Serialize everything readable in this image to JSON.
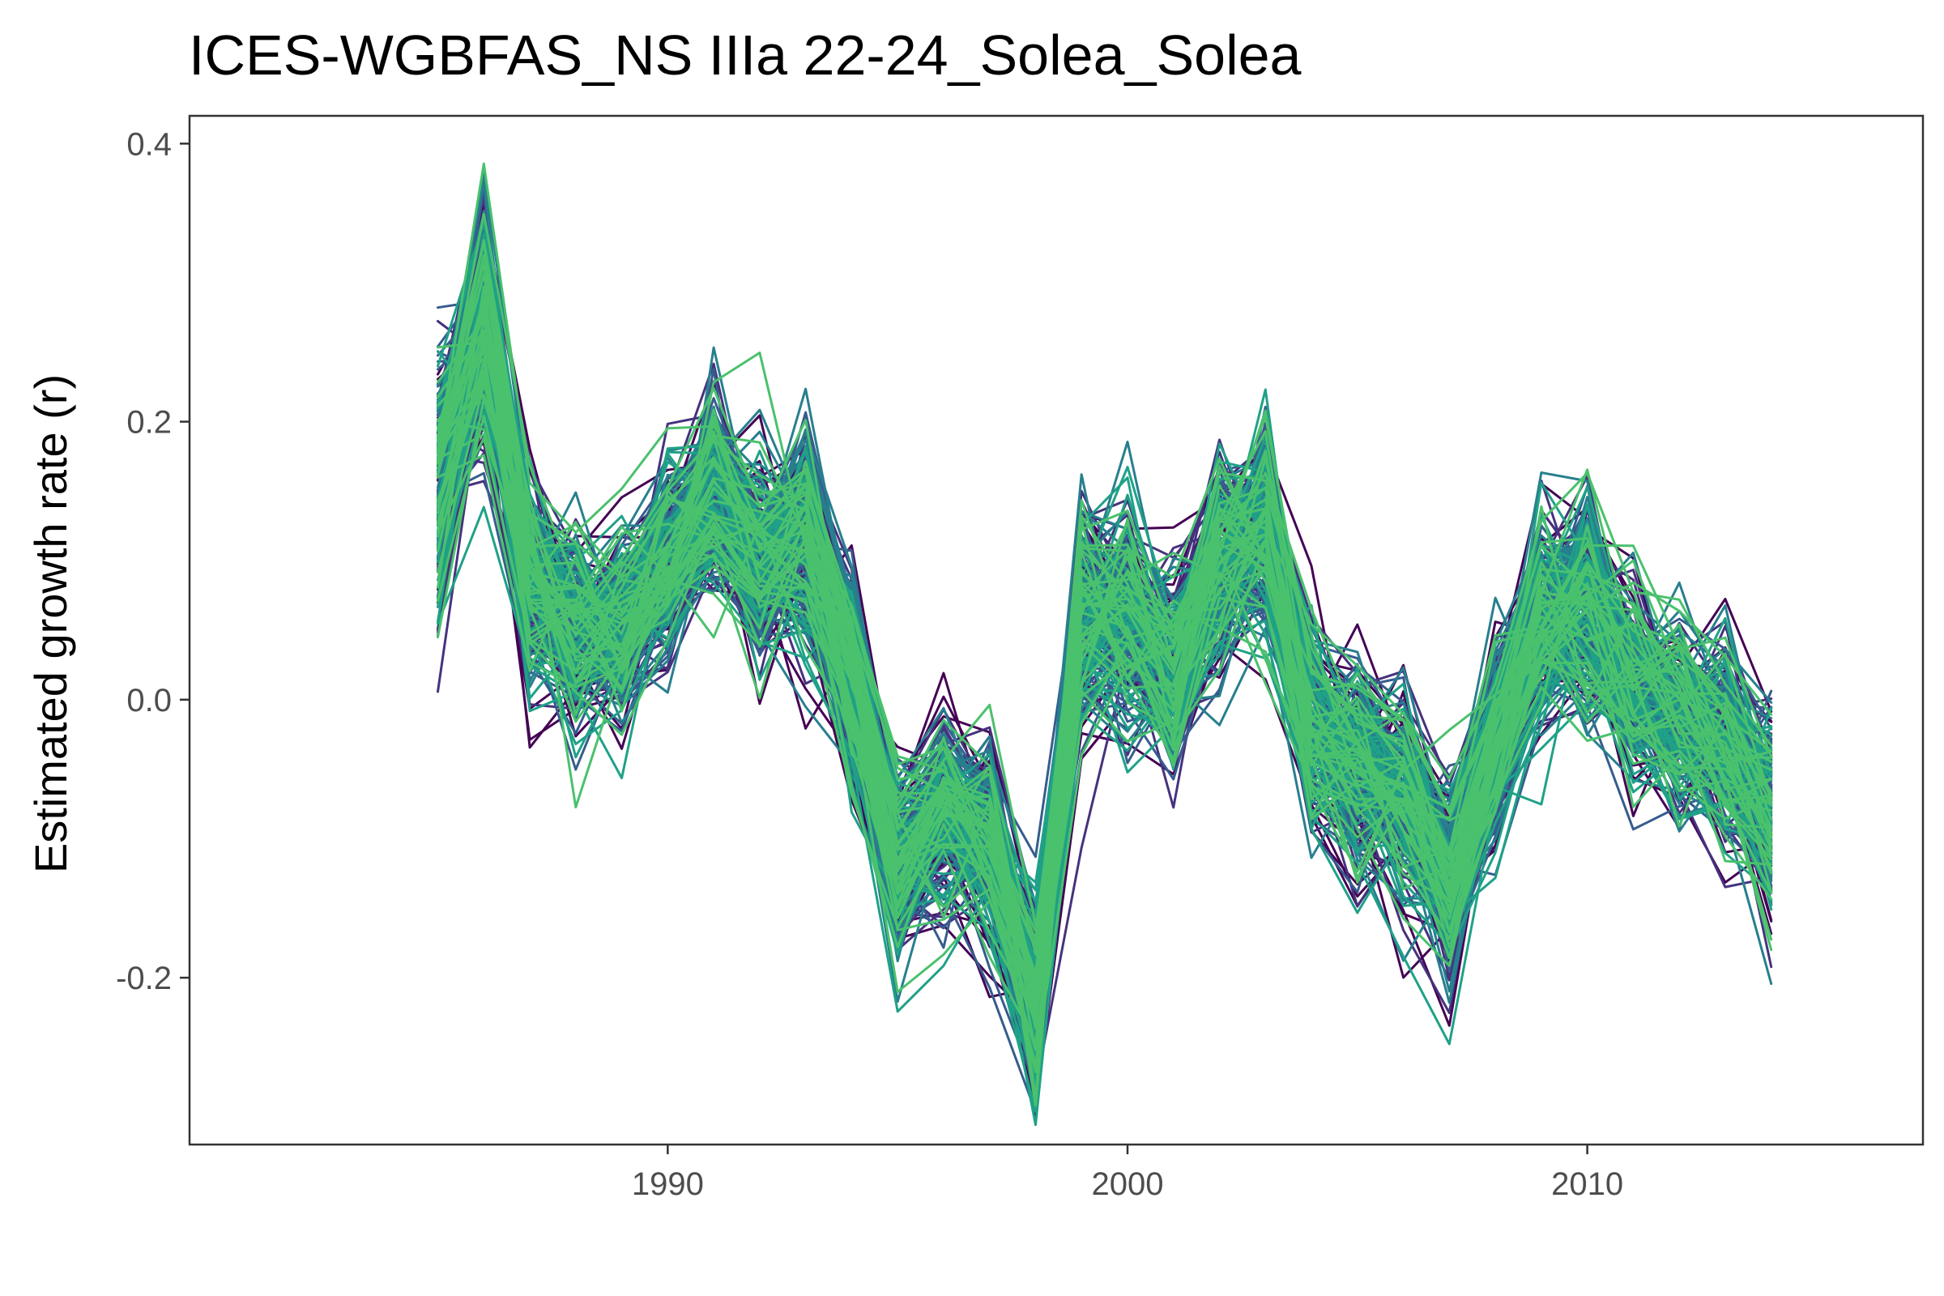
{
  "chart_data": {
    "type": "line",
    "title": "ICES-WGBFAS_NS IIIa 22-24_Solea_Solea",
    "xlabel": "",
    "ylabel": "Estimated growth rate (r)",
    "xlim": [
      1979.6,
      2017.3
    ],
    "ylim": [
      -0.32,
      0.42
    ],
    "x_ticks": [
      {
        "value": 1990,
        "label": "1990"
      },
      {
        "value": 2000,
        "label": "2000"
      },
      {
        "value": 2010,
        "label": "2010"
      }
    ],
    "y_ticks": [
      {
        "value": 0.4,
        "label": "0.4"
      },
      {
        "value": 0.2,
        "label": "0.2"
      },
      {
        "value": 0.0,
        "label": "0.0"
      },
      {
        "value": -0.2,
        "label": "-0.2"
      }
    ],
    "grid": false,
    "legend": "none",
    "palette": [
      "#440154",
      "#46327e",
      "#365c8d",
      "#277f8e",
      "#1fa187",
      "#4ac16d"
    ],
    "series_count": 240,
    "x": [
      1985,
      1986,
      1987,
      1988,
      1989,
      1990,
      1991,
      1992,
      1993,
      1994,
      1995,
      1996,
      1997,
      1998,
      1999,
      2000,
      2001,
      2002,
      2003,
      2004,
      2005,
      2006,
      2007,
      2008,
      2009,
      2010,
      2011,
      2012,
      2013,
      2014
    ],
    "mean_values": [
      0.16,
      0.27,
      0.08,
      0.05,
      0.05,
      0.1,
      0.15,
      0.1,
      0.12,
      0.02,
      -0.12,
      -0.08,
      -0.1,
      -0.22,
      0.06,
      0.06,
      0.02,
      0.1,
      0.12,
      -0.02,
      -0.05,
      -0.07,
      -0.13,
      -0.03,
      0.05,
      0.07,
      0.01,
      -0.01,
      -0.03,
      -0.08
    ],
    "spread": [
      0.045,
      0.035,
      0.035,
      0.03,
      0.03,
      0.03,
      0.03,
      0.03,
      0.035,
      0.03,
      0.03,
      0.03,
      0.03,
      0.03,
      0.035,
      0.035,
      0.03,
      0.035,
      0.035,
      0.03,
      0.03,
      0.03,
      0.03,
      0.03,
      0.035,
      0.035,
      0.03,
      0.03,
      0.03,
      0.03
    ]
  }
}
